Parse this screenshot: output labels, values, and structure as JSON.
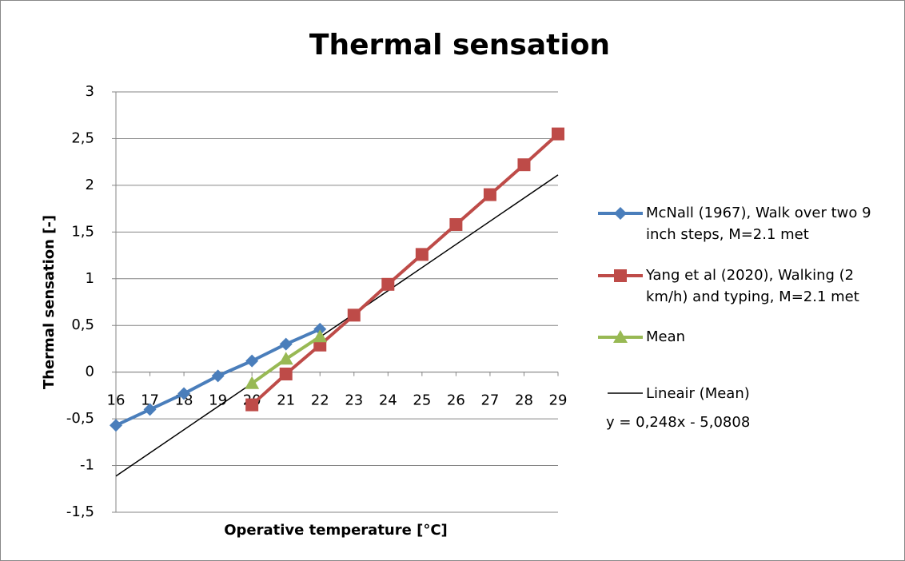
{
  "chart_data": {
    "type": "line",
    "title": "Thermal sensation",
    "xlabel": "Operative temperature [°C]",
    "ylabel": "Thermal sensation [-]",
    "xlim": [
      16,
      29
    ],
    "xticks": [
      16,
      17,
      18,
      19,
      20,
      21,
      22,
      23,
      24,
      25,
      26,
      27,
      28,
      29
    ],
    "ylim": [
      -1.5,
      3
    ],
    "yticks": [
      {
        "value": -1.5,
        "label": "-1,5"
      },
      -1,
      {
        "value": -0.5,
        "label": "-0,5"
      },
      0,
      {
        "value": 0.5,
        "label": "0,5"
      },
      1,
      {
        "value": 1.5,
        "label": "1,5"
      },
      2,
      {
        "value": 2.5,
        "label": "2,5"
      },
      3
    ],
    "grid": true,
    "legend": "right",
    "series": [
      {
        "name": "McNall (1967), Walk over two 9 inch steps, M=2.1 met",
        "color": "#4a7ebb",
        "marker": "diamond",
        "x": [
          16,
          17,
          18,
          19,
          20,
          21,
          22
        ],
        "values": [
          -0.57,
          -0.4,
          -0.23,
          -0.04,
          0.12,
          0.3,
          0.46
        ]
      },
      {
        "name": "Yang et al (2020), Walking (2 km/h) and typing, M=2.1 met",
        "color": "#be4b48",
        "marker": "square",
        "x": [
          20,
          21,
          22,
          23,
          24,
          25,
          26,
          27,
          28,
          29
        ],
        "values": [
          -0.35,
          -0.02,
          0.29,
          0.61,
          0.94,
          1.26,
          1.58,
          1.9,
          2.22,
          2.55
        ]
      },
      {
        "name": "Mean",
        "color": "#98b954",
        "marker": "triangle",
        "x": [
          20,
          21,
          22
        ],
        "values": [
          -0.12,
          0.14,
          0.38
        ]
      }
    ],
    "trendline": {
      "name": "Lineair (Mean)",
      "equation": "y = 0,248x - 5,0808",
      "color": "#000000",
      "x": [
        16,
        29
      ],
      "values": [
        -1.1128,
        2.1112
      ]
    }
  }
}
